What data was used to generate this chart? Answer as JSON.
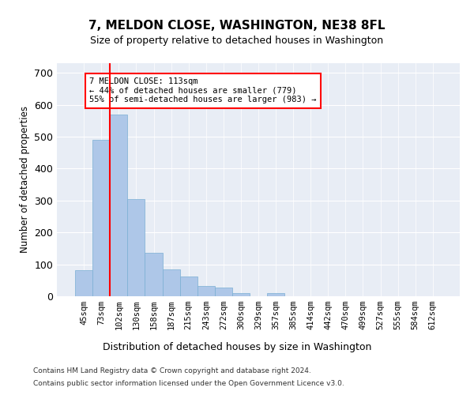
{
  "title": "7, MELDON CLOSE, WASHINGTON, NE38 8FL",
  "subtitle": "Size of property relative to detached houses in Washington",
  "xlabel": "Distribution of detached houses by size in Washington",
  "ylabel": "Number of detached properties",
  "footnote1": "Contains HM Land Registry data © Crown copyright and database right 2024.",
  "footnote2": "Contains public sector information licensed under the Open Government Licence v3.0.",
  "bar_labels": [
    "45sqm",
    "73sqm",
    "102sqm",
    "130sqm",
    "158sqm",
    "187sqm",
    "215sqm",
    "243sqm",
    "272sqm",
    "300sqm",
    "329sqm",
    "357sqm",
    "385sqm",
    "414sqm",
    "442sqm",
    "470sqm",
    "499sqm",
    "527sqm",
    "555sqm",
    "584sqm",
    "612sqm"
  ],
  "bar_values": [
    82,
    489,
    568,
    305,
    136,
    85,
    63,
    32,
    27,
    10,
    0,
    10,
    0,
    0,
    0,
    0,
    0,
    0,
    0,
    0,
    0
  ],
  "bar_color": "#aec7e8",
  "bar_edgecolor": "#7aafd4",
  "ylim": [
    0,
    730
  ],
  "yticks": [
    0,
    100,
    200,
    300,
    400,
    500,
    600,
    700
  ],
  "red_line_x": 1.5,
  "annotation_text": "7 MELDON CLOSE: 113sqm\n← 44% of detached houses are smaller (779)\n55% of semi-detached houses are larger (983) →",
  "bg_color": "#e8edf5"
}
